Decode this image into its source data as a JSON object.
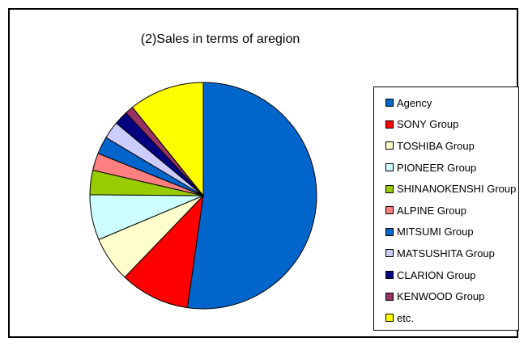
{
  "chart_data": {
    "type": "pie",
    "title": "(2)Sales in terms of aregion",
    "legend_position": "right",
    "slices": [
      {
        "label": "Agency",
        "value": 52.5,
        "color": "#0066CC"
      },
      {
        "label": "SONY Group",
        "value": 10,
        "color": "#FF0000"
      },
      {
        "label": "TOSHIBA Group",
        "value": 6.5,
        "color": "#FFFFCC"
      },
      {
        "label": "PIONEER Group",
        "value": 6.5,
        "color": "#CCFFFF"
      },
      {
        "label": "SHINANOKENSHI Group",
        "value": 3.5,
        "color": "#99CC00"
      },
      {
        "label": "ALPINE Group",
        "value": 2.5,
        "color": "#FF8080"
      },
      {
        "label": "MITSUMI Group",
        "value": 2.5,
        "color": "#0066CC"
      },
      {
        "label": "MATSUSHITA Group",
        "value": 2.5,
        "color": "#CCCCFF"
      },
      {
        "label": "CLARION Group",
        "value": 2,
        "color": "#000080"
      },
      {
        "label": "KENWOOD Group",
        "value": 1.2,
        "color": "#993366"
      },
      {
        "label": "etc.",
        "value": 10.8,
        "color": "#FFFF00"
      }
    ]
  }
}
